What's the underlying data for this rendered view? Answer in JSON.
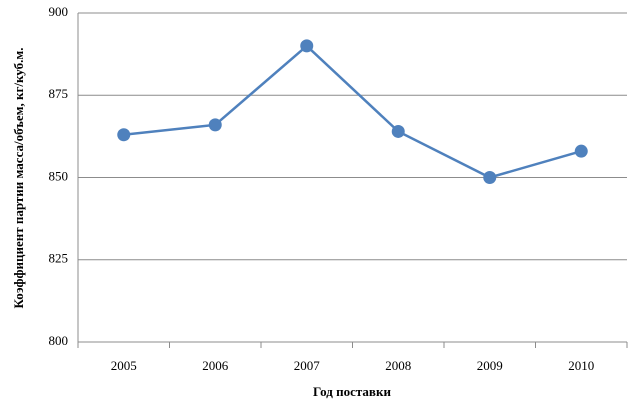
{
  "chart_data": {
    "type": "line",
    "xlabel": "Год поставки",
    "ylabel": "Коэффициент партии масса/объем, кг/куб.м.",
    "categories": [
      "2005",
      "2006",
      "2007",
      "2008",
      "2009",
      "2010"
    ],
    "series": [
      {
        "color": "#4f81bd",
        "values": [
          863,
          866,
          890,
          864,
          850,
          858
        ]
      }
    ],
    "ylim": [
      800,
      900
    ],
    "yticks": [
      800,
      825,
      850,
      875,
      900
    ],
    "grid": true
  }
}
